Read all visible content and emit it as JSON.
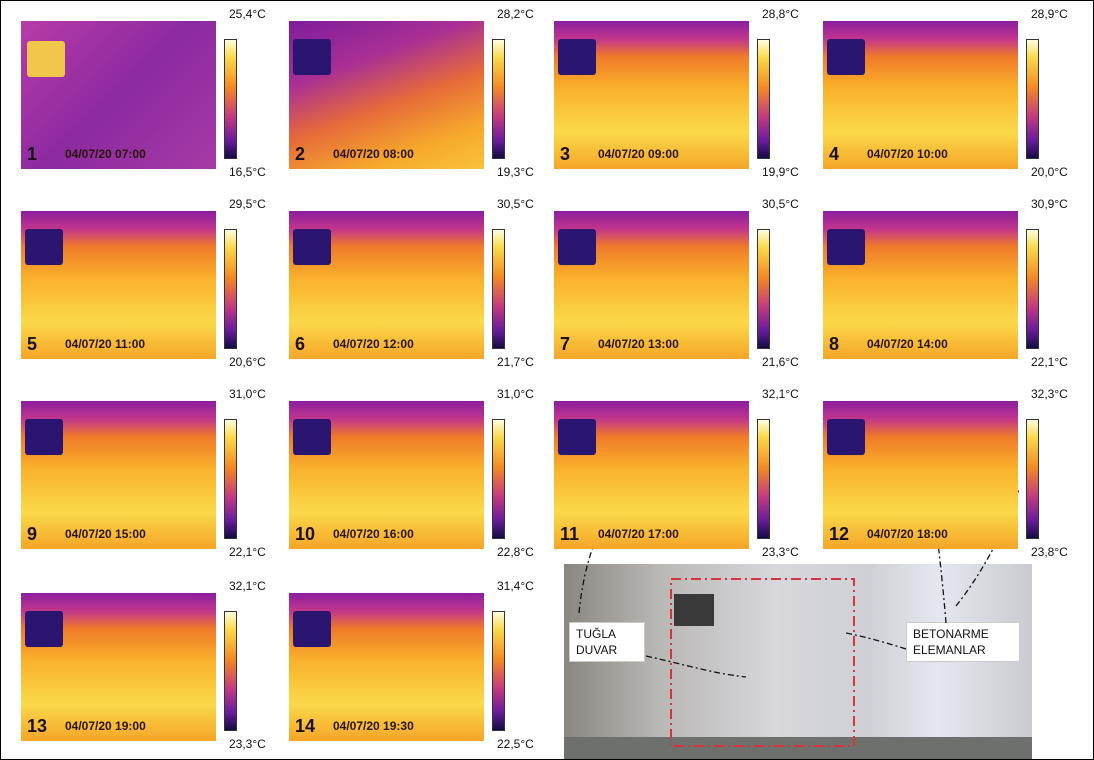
{
  "panels": [
    {
      "number": "1",
      "time": "04/07/20 07:00",
      "max": "25,4°C",
      "min": "16,5°C"
    },
    {
      "number": "2",
      "time": "04/07/20 08:00",
      "max": "28,2°C",
      "min": "19,3°C"
    },
    {
      "number": "3",
      "time": "04/07/20 09:00",
      "max": "28,8°C",
      "min": "19,9°C"
    },
    {
      "number": "4",
      "time": "04/07/20 10:00",
      "max": "28,9°C",
      "min": "20,0°C"
    },
    {
      "number": "5",
      "time": "04/07/20 11:00",
      "max": "29,5°C",
      "min": "20,6°C"
    },
    {
      "number": "6",
      "time": "04/07/20 12:00",
      "max": "30,5°C",
      "min": "21,7°C"
    },
    {
      "number": "7",
      "time": "04/07/20 13:00",
      "max": "30,5°C",
      "min": "21,6°C"
    },
    {
      "number": "8",
      "time": "04/07/20 14:00",
      "max": "30,9°C",
      "min": "22,1°C"
    },
    {
      "number": "9",
      "time": "04/07/20 15:00",
      "max": "31,0°C",
      "min": "22,1°C"
    },
    {
      "number": "10",
      "time": "04/07/20 16:00",
      "max": "31,0°C",
      "min": "22,8°C"
    },
    {
      "number": "11",
      "time": "04/07/20 17:00",
      "max": "32,1°C",
      "min": "23,3°C"
    },
    {
      "number": "12",
      "time": "04/07/20 18:00",
      "max": "32,3°C",
      "min": "23,8°C"
    },
    {
      "number": "13",
      "time": "04/07/20 19:00",
      "max": "32,1°C",
      "min": "23,3°C"
    },
    {
      "number": "14",
      "time": "04/07/20 19:30",
      "max": "31,4°C",
      "min": "22,5°C"
    }
  ],
  "photo": {
    "label_left": "TUĞLA DUVAR",
    "label_right": "BETONARME ELEMANLAR"
  }
}
